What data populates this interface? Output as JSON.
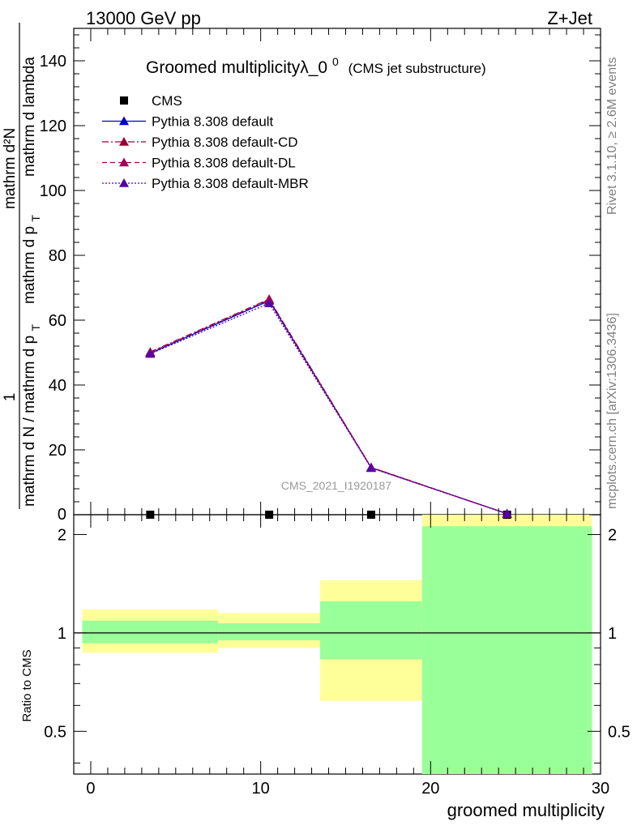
{
  "header": {
    "left": "13000 GeV pp",
    "right": "Z+Jet"
  },
  "title": {
    "main": "Groomed multiplicityλ_0",
    "sup": "0",
    "sub": "(CMS jet substructure)"
  },
  "side_text": {
    "rivet": "Rivet 3.1.10, ≥ 2.6M events",
    "mcplots": "mcplots.cern.ch [arXiv:1306.3436]"
  },
  "watermark": "CMS_2021_I1920187",
  "colors": {
    "cms": "#000000",
    "default": "#0000cc",
    "cd": "#990033",
    "dl": "#a0005a",
    "mbr": "#5500aa",
    "band_outer": "#ffff99",
    "band_inner": "#99ff99"
  },
  "chart_data": [
    {
      "type": "line",
      "panel": "main",
      "ylabel_numerator": "1",
      "ylabel_frac1": "mathrm d N / mathrm d p",
      "ylabel_frac1_sub": "T",
      "ylabel_frac2": "mathrm d²N",
      "ylabel_frac3": "mathrm d p",
      "ylabel_frac3_sub": "T",
      "ylabel_frac4": "mathrm d lambda",
      "xlim": [
        -1,
        30
      ],
      "ylim": [
        0,
        150
      ],
      "y_ticks": [
        20,
        40,
        60,
        80,
        100,
        120,
        140
      ],
      "y_ticks_zero": "0",
      "legend_position": "top-left",
      "x": [
        3.5,
        10.5,
        16.5,
        24.5
      ],
      "series": [
        {
          "name": "CMS",
          "style": "marker-square",
          "values": [
            0,
            0,
            0,
            0
          ]
        },
        {
          "name": "Pythia 8.308 default",
          "style": "solid",
          "values": [
            49.8,
            66.0,
            14.5,
            0.3
          ]
        },
        {
          "name": "Pythia 8.308 default-CD",
          "style": "dashdot",
          "values": [
            50.2,
            66.5,
            14.6,
            0.3
          ]
        },
        {
          "name": "Pythia 8.308 default-DL",
          "style": "dashed",
          "values": [
            50.0,
            66.3,
            14.6,
            0.3
          ]
        },
        {
          "name": "Pythia 8.308 default-MBR",
          "style": "dotted",
          "values": [
            49.6,
            65.2,
            14.4,
            0.3
          ]
        }
      ]
    },
    {
      "type": "area",
      "panel": "ratio",
      "ylabel": "Ratio to CMS",
      "xlabel": "groomed multiplicity",
      "scale": "log",
      "ylim": [
        0.37,
        2.3
      ],
      "y_ticks": [
        "0.5",
        "1",
        "2"
      ],
      "x_ticks": [
        "0",
        "10",
        "20",
        "30"
      ],
      "bins": [
        {
          "x0": -0.5,
          "x1": 7.5,
          "outer": [
            0.87,
            1.18
          ],
          "inner": [
            0.93,
            1.09
          ]
        },
        {
          "x0": 7.5,
          "x1": 13.5,
          "outer": [
            0.9,
            1.15
          ],
          "inner": [
            0.95,
            1.07
          ]
        },
        {
          "x0": 13.5,
          "x1": 19.5,
          "outer": [
            0.62,
            1.45
          ],
          "inner": [
            0.83,
            1.25
          ]
        },
        {
          "x0": 19.5,
          "x1": 29.5,
          "outer": [
            0.3,
            2.6
          ],
          "inner": [
            0.3,
            2.12
          ]
        }
      ]
    }
  ]
}
